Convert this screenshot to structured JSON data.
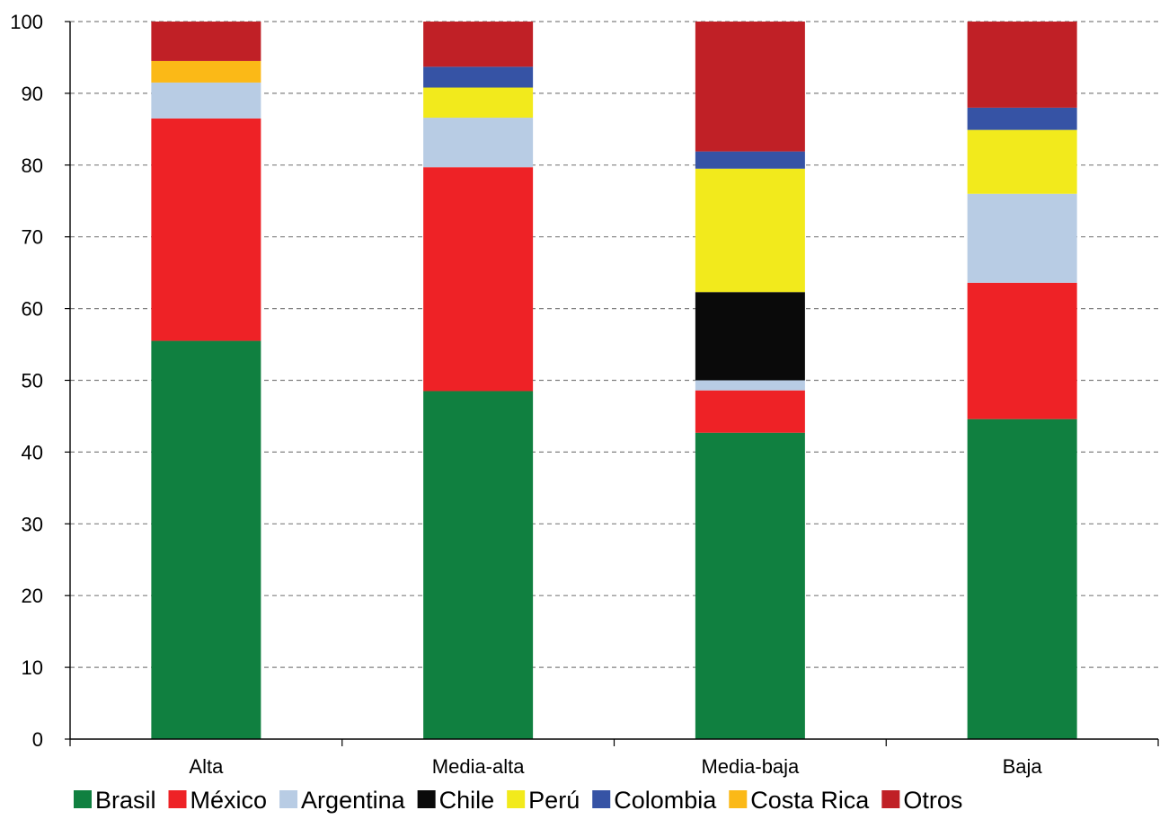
{
  "chart_data": {
    "type": "bar",
    "stacked": true,
    "title": "",
    "xlabel": "",
    "ylabel": "",
    "ylim": [
      0,
      100
    ],
    "yticks": [
      0,
      10,
      20,
      30,
      40,
      50,
      60,
      70,
      80,
      90,
      100
    ],
    "grid": "horizontal dashed",
    "legend_position": "bottom",
    "categories": [
      "Alta",
      "Media-alta",
      "Media-baja",
      "Baja"
    ],
    "series": [
      {
        "name": "Brasil",
        "color": "#108040",
        "values": [
          55.5,
          48.5,
          42.7,
          44.6
        ]
      },
      {
        "name": "México",
        "color": "#ee2226",
        "values": [
          31.0,
          31.2,
          5.9,
          19.0
        ]
      },
      {
        "name": "Argentina",
        "color": "#b8cce4",
        "values": [
          5.0,
          6.9,
          1.4,
          12.4
        ]
      },
      {
        "name": "Chile",
        "color": "#0a0a0a",
        "values": [
          0,
          0,
          12.3,
          0
        ]
      },
      {
        "name": "Perú",
        "color": "#f2ea1c",
        "values": [
          0,
          4.2,
          17.2,
          8.9
        ]
      },
      {
        "name": "Colombia",
        "color": "#3653a5",
        "values": [
          0,
          2.9,
          2.4,
          3.1
        ]
      },
      {
        "name": "Costa Rica",
        "color": "#fbb917",
        "values": [
          3.0,
          0,
          0,
          0
        ]
      },
      {
        "name": "Otros",
        "color": "#c02026",
        "values": [
          5.5,
          6.3,
          18.1,
          12.0
        ]
      }
    ]
  }
}
